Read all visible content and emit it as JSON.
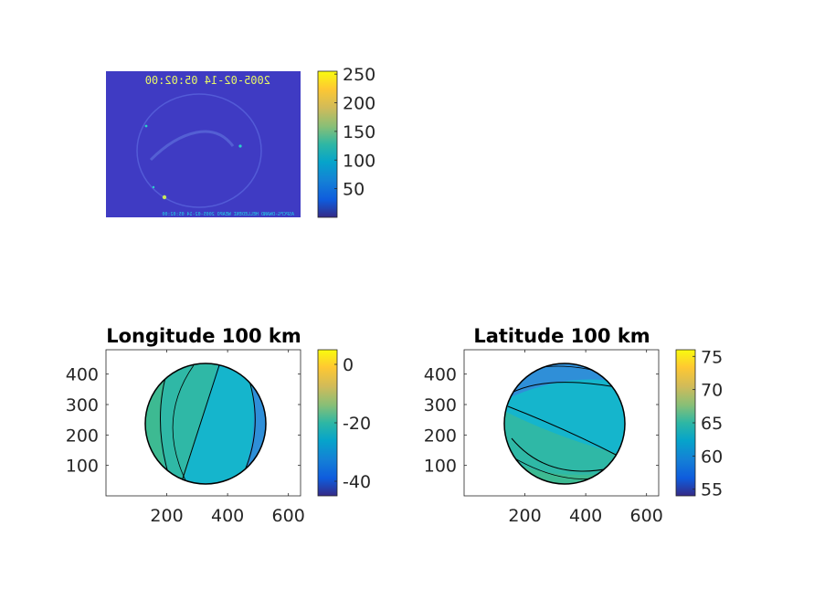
{
  "chart_data": [
    {
      "type": "heatmap",
      "title": "",
      "image_timestamp": "2005-02-14 05:02:00",
      "image_timestamp_mirrored": true,
      "image_footer_text": "ASPCFG-DWAND HELLEDENI WEAPO 2005-02-14 05:02:00",
      "colormap": "parula",
      "colorbar": {
        "ticks": [
          50,
          100,
          150,
          200,
          250
        ],
        "range": [
          0,
          255
        ]
      },
      "axes_visible": false
    },
    {
      "type": "heatmap",
      "title": "Longitude 100 km",
      "colormap": "parula",
      "xticks": [
        200,
        400,
        600
      ],
      "yticks": [
        100,
        200,
        300,
        400
      ],
      "xlim": [
        0,
        640
      ],
      "ylim": [
        0,
        480
      ],
      "colorbar": {
        "ticks": [
          0,
          -20,
          -40
        ],
        "range": [
          -45,
          5
        ]
      },
      "regions": [
        {
          "name": "west-center",
          "value": -20
        },
        {
          "name": "east-center",
          "value": -27
        },
        {
          "name": "far-west",
          "value": -15
        },
        {
          "name": "far-east",
          "value": -35
        }
      ]
    },
    {
      "type": "heatmap",
      "title": "Latitude 100 km",
      "colormap": "parula",
      "xticks": [
        200,
        400,
        600
      ],
      "yticks": [
        100,
        200,
        300,
        400
      ],
      "xlim": [
        0,
        640
      ],
      "ylim": [
        0,
        480
      ],
      "colorbar": {
        "ticks": [
          75,
          70,
          65,
          60,
          55
        ],
        "range": [
          54,
          76
        ]
      },
      "regions": [
        {
          "name": "north",
          "value": 60
        },
        {
          "name": "center",
          "value": 63
        },
        {
          "name": "south",
          "value": 65
        },
        {
          "name": "far-south",
          "value": 67
        }
      ]
    }
  ],
  "colors": {
    "parula": [
      "#352a87",
      "#0f5cdd",
      "#1481d6",
      "#06a4ca",
      "#2eb7a4",
      "#87bf77",
      "#d1bb59",
      "#fec832",
      "#f9fb0e"
    ]
  }
}
